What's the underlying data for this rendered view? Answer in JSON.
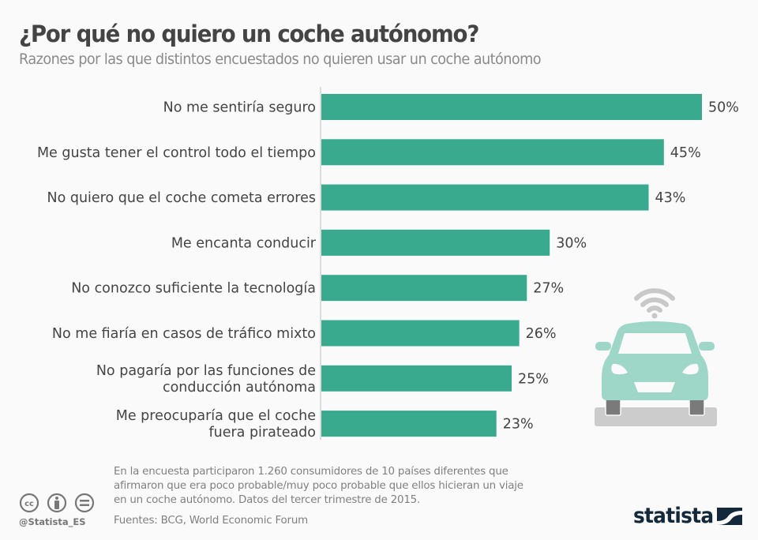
{
  "header": {
    "title": "¿Por qué no quiero un coche autónomo?",
    "subtitle": "Razones por las que distintos encuestados no quieren usar un coche autónomo"
  },
  "colors": {
    "bar": "#3aaa8f",
    "car_body": "#9ed6c7",
    "wifi": "#c8c8c8",
    "road": "#cccccc",
    "wheel": "#7a7a7a",
    "logo": "#13283b"
  },
  "chart_data": {
    "type": "bar",
    "orientation": "horizontal",
    "title": "¿Por qué no quiero un coche autónomo?",
    "subtitle": "Razones por las que distintos encuestados no quieren usar un coche autónomo",
    "xlabel": "",
    "ylabel": "",
    "unit": "%",
    "xlim": [
      0,
      50
    ],
    "grid": false,
    "categories": [
      [
        "No me sentiría seguro"
      ],
      [
        "Me gusta tener el control todo el tiempo"
      ],
      [
        "No quiero que el coche cometa errores"
      ],
      [
        "Me encanta conducir"
      ],
      [
        "No conozco suficiente la tecnología"
      ],
      [
        "No me fiaría en casos de tráfico mixto"
      ],
      [
        "No pagaría por las funciones de",
        "conducción autónoma"
      ],
      [
        "Me preocuparía que el coche",
        "fuera pirateado"
      ]
    ],
    "values": [
      50,
      45,
      43,
      30,
      27,
      26,
      25,
      23
    ],
    "value_labels": [
      "50%",
      "45%",
      "43%",
      "30%",
      "27%",
      "26%",
      "25%",
      "23%"
    ]
  },
  "footer": {
    "note_lines": [
      "En la encuesta participaron 1.260 consumidores de 10 países diferentes que",
      "afirmaron que era poco probable/muy poco probable que ellos hicieran un viaje",
      "en un coche autónomo. Datos del tercer trimestre de 2015."
    ],
    "source": "Fuentes: BCG, World Economic Forum",
    "handle": "@Statista_ES",
    "license_icons": [
      "cc-icon",
      "attribution-icon",
      "no-derivatives-icon"
    ],
    "logo_text": "statista"
  }
}
